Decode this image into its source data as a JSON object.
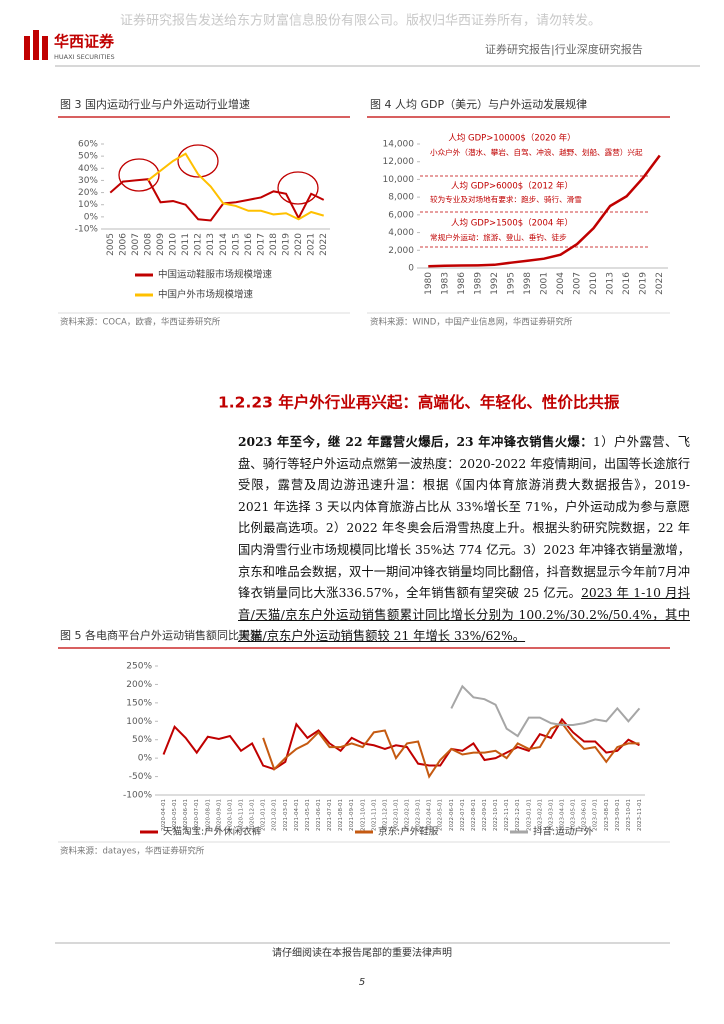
{
  "header": {
    "watermark": "证券研究报告发送给东方财富信息股份有限公司。版权归华西证券所有，请勿转发。",
    "logo_cn": "华西证券",
    "logo_en": "HUAXI SECURITIES",
    "report_type": "证券研究报告|行业深度研究报告"
  },
  "chart_data": [
    {
      "type": "line",
      "title": "图 3 国内运动行业与户外运动行业增速",
      "source": "资料来源：COCA，欧睿，华西证券研究所",
      "categories": [
        "2005",
        "2006",
        "2007",
        "2008",
        "2009",
        "2010",
        "2011",
        "2012",
        "2013",
        "2014",
        "2015",
        "2016",
        "2017",
        "2018",
        "2019",
        "2020",
        "2021",
        "2022"
      ],
      "series": [
        {
          "name": "中国运动鞋服市场规模增速",
          "color": "#c00000",
          "values": [
            20,
            29,
            30,
            31,
            12,
            13,
            10,
            -2,
            -3,
            11,
            12,
            14,
            16,
            21,
            19,
            -1,
            19,
            14
          ]
        },
        {
          "name": "中国户外市场规模增速",
          "color": "#ffc000",
          "values": [
            null,
            null,
            null,
            30,
            38,
            46,
            52,
            35,
            25,
            11,
            9,
            5,
            5,
            2,
            3,
            -2,
            4,
            1
          ]
        }
      ],
      "ylim": [
        -10,
        60
      ],
      "yticks": [
        {
          "value": -10,
          "label": "-10%"
        },
        {
          "value": 0,
          "label": "0%"
        },
        {
          "value": 10,
          "label": "10%"
        },
        {
          "value": 20,
          "label": "20%"
        },
        {
          "value": 30,
          "label": "30%"
        },
        {
          "value": 40,
          "label": "40%"
        },
        {
          "value": 50,
          "label": "50%"
        },
        {
          "value": 60,
          "label": "60%"
        }
      ]
    },
    {
      "type": "line",
      "title": "图 4 人均 GDP（美元）与户外运动发展规律",
      "source": "资料来源：WIND，中国产业信息网，华西证券研究所",
      "categories": [
        "1980",
        "1983",
        "1986",
        "1989",
        "1992",
        "1995",
        "1998",
        "2001",
        "2004",
        "2007",
        "2010",
        "2013",
        "2016",
        "2019",
        "2022"
      ],
      "series": [
        {
          "color": "#c00000",
          "values": [
            200,
            250,
            280,
            300,
            360,
            600,
            820,
            1050,
            1500,
            2700,
            4500,
            7000,
            8100,
            10200,
            12700
          ]
        }
      ],
      "ylim": [
        0,
        14000
      ],
      "yticks": [
        0,
        {
          "value": 2000,
          "label": "2,000"
        },
        {
          "value": 4000,
          "label": "4,000"
        },
        {
          "value": 6000,
          "label": "6,000"
        },
        {
          "value": 8000,
          "label": "8,000"
        },
        {
          "value": 10000,
          "label": "10,000"
        },
        {
          "value": 12000,
          "label": "12,000"
        },
        {
          "value": 14000,
          "label": "14,000"
        }
      ],
      "annotations": [
        "人均 GDP>10000$（2020 年）",
        "小众户外（潜水、攀岩、自驾、冲浪、越野、划船、露营）兴起",
        "人均 GDP>6000$（2012 年）",
        "较为专业及对场地有要求：跑步、骑行、滑雪",
        "人均 GDP>1500$（2004 年）",
        "常规户外运动：旅游、登山、垂钓、徒步"
      ]
    },
    {
      "type": "line",
      "title": "图 5 各电商平台户外运动销售额同比增速",
      "source": "资料来源：datayes，华西证券研究所",
      "categories": [
        "2020-04-01",
        "2020-05-01",
        "2020-06-01",
        "2020-07-01",
        "2020-08-01",
        "2020-09-01",
        "2020-10-01",
        "2020-11-01",
        "2020-12-01",
        "2021-01-01",
        "2021-02-01",
        "2021-03-01",
        "2021-04-01",
        "2021-05-01",
        "2021-06-01",
        "2021-07-01",
        "2021-08-01",
        "2021-09-01",
        "2021-10-01",
        "2021-11-01",
        "2021-12-01",
        "2022-01-01",
        "2022-02-01",
        "2022-03-01",
        "2022-04-01",
        "2022-05-01",
        "2022-06-01",
        "2022-07-01",
        "2022-08-01",
        "2022-09-01",
        "2022-10-01",
        "2022-11-01",
        "2022-12-01",
        "2023-01-01",
        "2023-02-01",
        "2023-03-01",
        "2023-04-01",
        "2023-05-01",
        "2023-06-01",
        "2023-07-01",
        "2023-08-01",
        "2023-09-01",
        "2023-10-01",
        "2023-11-01"
      ],
      "series": [
        {
          "name": "天猫淘宝:户外休闲衣裤",
          "color": "#c00000",
          "values": [
            10,
            85,
            55,
            15,
            58,
            52,
            60,
            20,
            40,
            -20,
            -30,
            -10,
            92,
            55,
            75,
            40,
            20,
            55,
            40,
            35,
            25,
            35,
            30,
            -15,
            -20,
            -20,
            25,
            20,
            40,
            -5,
            0,
            15,
            30,
            20,
            65,
            55,
            105,
            70,
            45,
            45,
            15,
            20,
            50,
            35
          ]
        },
        {
          "name": "京东:户外鞋服",
          "color": "#c55a11",
          "values": [
            null,
            null,
            null,
            null,
            null,
            null,
            null,
            null,
            null,
            55,
            -30,
            0,
            25,
            40,
            70,
            30,
            30,
            40,
            30,
            70,
            75,
            0,
            40,
            45,
            -50,
            -5,
            25,
            10,
            15,
            15,
            20,
            0,
            40,
            25,
            30,
            80,
            95,
            55,
            25,
            30,
            -10,
            30,
            40,
            40
          ]
        },
        {
          "name": "抖音:运动户外",
          "color": "#a6a6a6",
          "values": [
            null,
            null,
            null,
            null,
            null,
            null,
            null,
            null,
            null,
            null,
            null,
            null,
            null,
            null,
            null,
            null,
            null,
            null,
            null,
            null,
            null,
            null,
            null,
            null,
            null,
            null,
            135,
            195,
            165,
            160,
            145,
            80,
            60,
            110,
            110,
            95,
            90,
            90,
            95,
            105,
            100,
            135,
            100,
            135
          ]
        }
      ],
      "ylim": [
        -100,
        250
      ],
      "yticks": [
        {
          "value": -100,
          "label": "-100%"
        },
        {
          "value": -50,
          "label": "-50%"
        },
        {
          "value": 0,
          "label": "0%"
        },
        {
          "value": 50,
          "label": "50%"
        },
        {
          "value": 100,
          "label": "100%"
        },
        {
          "value": 150,
          "label": "150%"
        },
        {
          "value": 200,
          "label": "200%"
        },
        {
          "value": 250,
          "label": "250%"
        }
      ]
    }
  ],
  "section": {
    "heading": "1.2.23 年户外行业再兴起：高端化、年轻化、性价比共振",
    "lead": "2023 年至今，继 22 年露营火爆后，23 年冲锋衣销售火爆：",
    "body": "1）户外露营、飞盘、骑行等轻户外运动点燃第一波热度：2020-2022 年疫情期间，出国等长途旅行受限，露营及周边游迅速升温：根据《国内体育旅游消费大数据报告》，2019-2021 年选择 3 天以内体育旅游占比从 33%增长至 71%，户外运动成为参与意愿比例最高选项。2）2022 年冬奥会后滑雪热度上升。根据头豹研究院数据，22 年国内滑雪行业市场规模同比增长 35%达 774 亿元。3）2023 年冲锋衣销量激增，京东和唯品会数据，双十一期间冲锋衣销量均同比翻倍，抖音数据显示今年前7月冲锋衣销量同比大涨336.57%，全年销售额有望突破 25 亿元。",
    "highlight": "2023 年 1-10 月抖音/天猫/京东户外运动销售额累计同比增长分别为 100.2%/30.2%/50.4%，其中天猫/京东户外运动销售额较 21 年增长 33%/62%。"
  },
  "footer": {
    "disclaimer": "请仔细阅读在本报告尾部的重要法律声明",
    "page": "5"
  }
}
